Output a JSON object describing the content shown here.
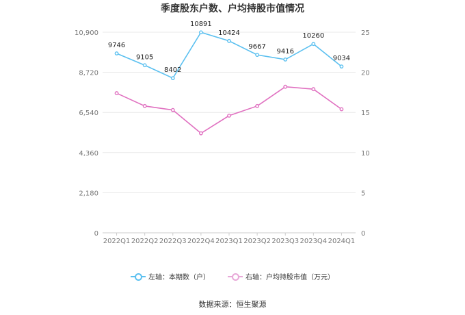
{
  "title": "季度股东户数、户均持股市值情况",
  "source": "数据来源：恒生聚源",
  "colors": {
    "left": "#5bc0f0",
    "right": "#e070c0",
    "grid": "#e8e8e8",
    "axis": "#cccccc"
  },
  "legend": [
    {
      "label": "左轴：本期数（户）",
      "series": 0
    },
    {
      "label": "右轴：户均持股市值（万元）",
      "series": 1
    }
  ],
  "chart_data": {
    "type": "line",
    "title": "季度股东户数、户均持股市值情况",
    "categories": [
      "2022Q1",
      "2022Q2",
      "2022Q3",
      "2022Q4",
      "2023Q1",
      "2023Q2",
      "2023Q3",
      "2023Q4",
      "2024Q1"
    ],
    "left_axis": {
      "ticks": [
        "0",
        "2,180",
        "4,360",
        "6,540",
        "8,720",
        "10,900"
      ],
      "ylim": [
        0,
        10900
      ]
    },
    "right_axis": {
      "ticks": [
        "0",
        "5",
        "10",
        "15",
        "20",
        "25"
      ],
      "ylim": [
        0,
        25
      ]
    },
    "series": [
      {
        "name": "左轴：本期数（户）",
        "axis": "left",
        "color": "#5bc0f0",
        "values": [
          9746,
          9105,
          8402,
          10891,
          10424,
          9667,
          9416,
          10260,
          9034
        ],
        "labels": [
          "9746",
          "9105",
          "8402",
          "10891",
          "10424",
          "9667",
          "9416",
          "10260",
          "9034"
        ]
      },
      {
        "name": "右轴：户均持股市值（万元）",
        "axis": "right",
        "color": "#e070c0",
        "values": [
          17.4,
          15.8,
          15.3,
          12.4,
          14.6,
          15.8,
          18.2,
          17.9,
          15.4
        ]
      }
    ],
    "grid": true,
    "legend_position": "bottom"
  }
}
